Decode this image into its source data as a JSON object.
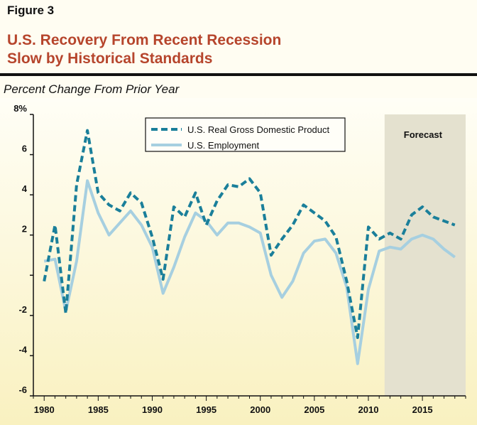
{
  "figure_label": "Figure 3",
  "title_line1": "U.S. Recovery From Recent Recession",
  "title_line2": "Slow by Historical Standards",
  "chart_data": {
    "type": "line",
    "ylabel": "Percent Change From Prior Year",
    "ylim": [
      -6,
      8
    ],
    "xlim": [
      1979,
      2019
    ],
    "y_ticks": [
      {
        "value": 8,
        "label": "8%"
      },
      {
        "value": 6,
        "label": "6"
      },
      {
        "value": 4,
        "label": "4"
      },
      {
        "value": 2,
        "label": "2"
      },
      {
        "value": 0,
        "label": ""
      },
      {
        "value": -2,
        "label": "-2"
      },
      {
        "value": -4,
        "label": "-4"
      },
      {
        "value": -6,
        "label": "-6"
      }
    ],
    "x_ticks": [
      {
        "value": 1980,
        "label": "1980"
      },
      {
        "value": 1985,
        "label": "1985"
      },
      {
        "value": 1990,
        "label": "1990"
      },
      {
        "value": 1995,
        "label": "1995"
      },
      {
        "value": 2000,
        "label": "2000"
      },
      {
        "value": 2005,
        "label": "2005"
      },
      {
        "value": 2010,
        "label": "2010"
      },
      {
        "value": 2015,
        "label": "2015"
      }
    ],
    "forecast": {
      "start": 2011.5,
      "end": 2019,
      "label": "Forecast",
      "color": "#e4e1cf"
    },
    "series": [
      {
        "name": "U.S. Real Gross Domestic Product",
        "style": "dashed",
        "color": "#1a7f9a",
        "x": [
          1980,
          1981,
          1982,
          1983,
          1984,
          1985,
          1986,
          1987,
          1988,
          1989,
          1990,
          1991,
          1992,
          1993,
          1994,
          1995,
          1996,
          1997,
          1998,
          1999,
          2000,
          2001,
          2002,
          2003,
          2004,
          2005,
          2006,
          2007,
          2008,
          2009,
          2010,
          2011,
          2012,
          2013,
          2014,
          2015,
          2016,
          2017,
          2018
        ],
        "values": [
          -0.3,
          2.5,
          -1.9,
          4.5,
          7.2,
          4.1,
          3.5,
          3.2,
          4.1,
          3.6,
          1.9,
          -0.2,
          3.4,
          2.9,
          4.1,
          2.5,
          3.7,
          4.5,
          4.4,
          4.8,
          4.1,
          1.0,
          1.8,
          2.5,
          3.5,
          3.1,
          2.7,
          1.9,
          -0.3,
          -3.1,
          2.4,
          1.8,
          2.1,
          1.8,
          3.0,
          3.4,
          2.9,
          2.7,
          2.5
        ]
      },
      {
        "name": "U.S. Employment",
        "style": "solid",
        "color": "#a6cfe0",
        "x": [
          1980,
          1981,
          1982,
          1983,
          1984,
          1985,
          1986,
          1987,
          1988,
          1989,
          1990,
          1991,
          1992,
          1993,
          1994,
          1995,
          1996,
          1997,
          1998,
          1999,
          2000,
          2001,
          2002,
          2003,
          2004,
          2005,
          2006,
          2007,
          2008,
          2009,
          2010,
          2011,
          2012,
          2013,
          2014,
          2015,
          2016,
          2017,
          2018
        ],
        "values": [
          0.7,
          0.8,
          -1.8,
          0.7,
          4.7,
          3.1,
          2.0,
          2.6,
          3.2,
          2.5,
          1.4,
          -0.9,
          0.4,
          1.9,
          3.1,
          2.7,
          2.0,
          2.6,
          2.6,
          2.4,
          2.1,
          0.0,
          -1.1,
          -0.3,
          1.1,
          1.7,
          1.8,
          1.1,
          -0.6,
          -4.4,
          -0.7,
          1.2,
          1.4,
          1.3,
          1.8,
          2.0,
          1.8,
          1.3,
          0.9
        ]
      }
    ]
  }
}
